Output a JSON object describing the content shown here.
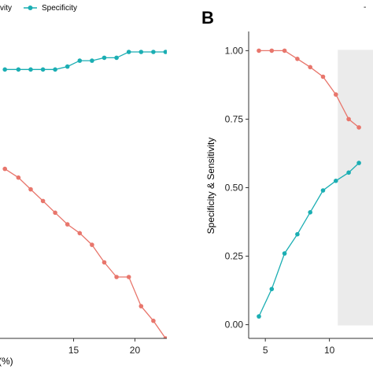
{
  "colors": {
    "sensitivity": "#E8766C",
    "specificity": "#1BAEB3",
    "highlight": "#EBEBEB",
    "axis": "#333333"
  },
  "legend": {
    "sensitivity_label": "vity",
    "specificity_label": "Specificity"
  },
  "panel_b": {
    "label": "B",
    "legend_fragment": "-"
  },
  "chart_data": [
    {
      "panel": "A",
      "type": "line",
      "xlabel": "(%)",
      "ylabel": "",
      "xlim": [
        9.0,
        22.6
      ],
      "ylim": [
        0.0,
        1.05
      ],
      "x_ticks": [
        15,
        20
      ],
      "x_tick_labels": [
        "15",
        "20"
      ],
      "series": [
        {
          "name": "Sensitivity",
          "color": "#E8766C",
          "x": [
            9.4,
            10.5,
            11.5,
            12.5,
            13.5,
            14.5,
            15.5,
            16.5,
            17.5,
            18.5,
            19.5,
            20.5,
            21.5,
            22.5
          ],
          "y": [
            0.58,
            0.55,
            0.51,
            0.47,
            0.43,
            0.39,
            0.36,
            0.32,
            0.26,
            0.21,
            0.21,
            0.11,
            0.06,
            0.0
          ]
        },
        {
          "name": "Specificity",
          "color": "#1BAEB3",
          "x": [
            9.4,
            10.5,
            11.5,
            12.5,
            13.5,
            14.5,
            15.5,
            16.5,
            17.5,
            18.5,
            19.5,
            20.5,
            21.5,
            22.5
          ],
          "y": [
            0.92,
            0.92,
            0.92,
            0.92,
            0.92,
            0.93,
            0.95,
            0.95,
            0.96,
            0.96,
            0.98,
            0.98,
            0.98,
            0.98
          ]
        }
      ]
    },
    {
      "panel": "B",
      "type": "line",
      "xlabel": "",
      "ylabel": "Specificity & Sensitivity",
      "xlim": [
        3.7,
        13.4
      ],
      "ylim": [
        -0.05,
        1.07
      ],
      "y_ticks": [
        0.0,
        0.25,
        0.5,
        0.75,
        1.0
      ],
      "y_tick_labels": [
        "0.00",
        "0.25",
        "0.50",
        "0.75",
        "1.00"
      ],
      "x_ticks": [
        5,
        10
      ],
      "x_tick_labels": [
        "5",
        "10"
      ],
      "highlight_x": [
        10.65,
        13.4
      ],
      "series": [
        {
          "name": "Sensitivity",
          "color": "#E8766C",
          "x": [
            4.5,
            5.5,
            6.5,
            7.5,
            8.5,
            9.5,
            10.5,
            11.5,
            12.3
          ],
          "y": [
            1.0,
            1.0,
            1.0,
            0.97,
            0.94,
            0.905,
            0.84,
            0.75,
            0.72
          ]
        },
        {
          "name": "Specificity",
          "color": "#1BAEB3",
          "x": [
            4.5,
            5.5,
            6.5,
            7.5,
            8.5,
            9.5,
            10.5,
            11.5,
            12.3
          ],
          "y": [
            0.03,
            0.13,
            0.26,
            0.33,
            0.41,
            0.49,
            0.525,
            0.555,
            0.59
          ]
        }
      ]
    }
  ]
}
